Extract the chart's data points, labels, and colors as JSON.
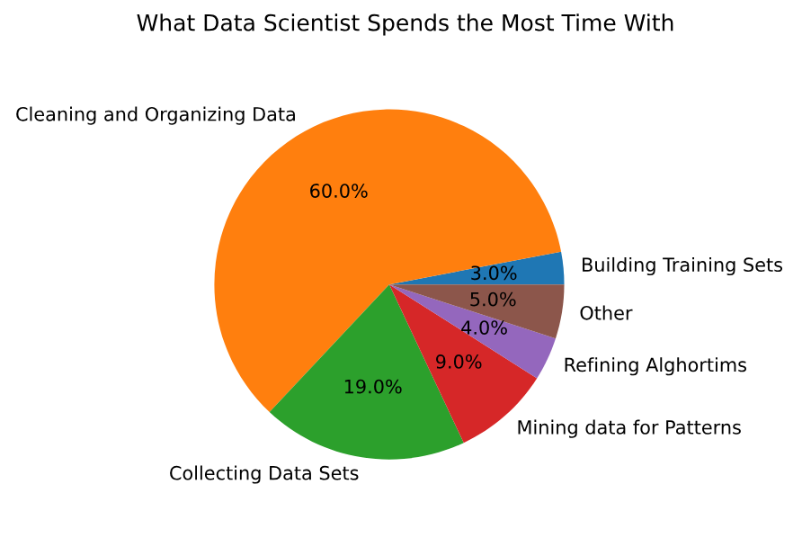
{
  "chart_data": {
    "type": "pie",
    "title": "What Data Scientist Spends the Most Time With",
    "categories": [
      "Building Training Sets",
      "Cleaning and Organizing Data",
      "Collecting Data Sets",
      "Mining data for Patterns",
      "Refining Alghortims",
      "Other"
    ],
    "values": [
      3,
      60,
      19,
      9,
      4,
      5
    ],
    "value_labels": [
      "3.0%",
      "60.0%",
      "19.0%",
      "9.0%",
      "4.0%",
      "5.0%"
    ],
    "colors": [
      "#1f77b4",
      "#ff7f0e",
      "#2ca02c",
      "#d62728",
      "#9467bd",
      "#8c564b"
    ]
  }
}
